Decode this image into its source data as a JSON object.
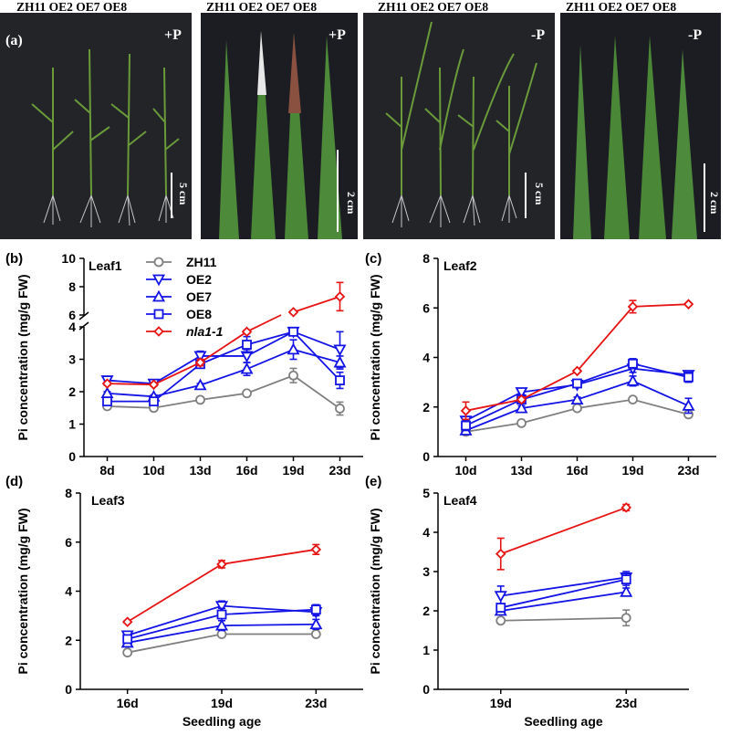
{
  "panel_a": {
    "label": "(a)",
    "photos": [
      {
        "header": "ZH11 OE2  OE7  OE8",
        "condition": "+P",
        "scale": "5 cm",
        "type": "seedling"
      },
      {
        "header": "ZH11 OE2 OE7 OE8",
        "condition": "+P",
        "scale": "2 cm",
        "type": "leaf"
      },
      {
        "header": "ZH11 OE2  OE7  OE8",
        "condition": "-P",
        "scale": "5 cm",
        "type": "seedling"
      },
      {
        "header": "ZH11 OE2 OE7 OE8",
        "condition": "-P",
        "scale": "2 cm",
        "type": "leaf"
      }
    ]
  },
  "legend": [
    {
      "name": "ZH11",
      "color": "#808080",
      "marker": "circle"
    },
    {
      "name": "OE2",
      "color": "#1414e6",
      "marker": "triangle-down"
    },
    {
      "name": "OE7",
      "color": "#1414e6",
      "marker": "triangle-up"
    },
    {
      "name": "OE8",
      "color": "#1414e6",
      "marker": "square"
    },
    {
      "name": "nla1-1",
      "color": "#e61414",
      "marker": "diamond"
    }
  ],
  "chart_data": [
    {
      "panel": "(b)",
      "title": "Leaf1",
      "type": "line",
      "ylabel": "Pi concentration (mg/g FW)",
      "xlabel": "",
      "categories": [
        "8d",
        "10d",
        "13d",
        "16d",
        "19d",
        "23d"
      ],
      "y_axis": {
        "broken": true,
        "lower_range": [
          0,
          4
        ],
        "upper_range": [
          6,
          10
        ],
        "lower_ticks": [
          "0",
          "1",
          "2",
          "3",
          "4"
        ],
        "upper_ticks": [
          "6",
          "8",
          "10"
        ]
      },
      "series": [
        {
          "name": "ZH11",
          "values": [
            1.55,
            1.5,
            1.75,
            1.95,
            2.5,
            1.48
          ],
          "errors": [
            0.08,
            0.08,
            0.08,
            0.08,
            0.22,
            0.2
          ]
        },
        {
          "name": "OE2",
          "values": [
            2.35,
            2.25,
            3.1,
            3.1,
            3.85,
            3.3
          ],
          "errors": [
            0.05,
            0.05,
            0.15,
            0.2,
            0.3,
            0.55
          ]
        },
        {
          "name": "OE7",
          "values": [
            1.95,
            1.85,
            2.2,
            2.7,
            3.3,
            2.9
          ],
          "errors": [
            0.05,
            0.05,
            0.05,
            0.2,
            0.3,
            0.2
          ]
        },
        {
          "name": "OE8",
          "values": [
            1.7,
            1.7,
            2.85,
            3.45,
            3.85,
            2.35
          ],
          "errors": [
            0.05,
            0.05,
            0.1,
            0.25,
            0.2,
            0.25
          ]
        },
        {
          "name": "nla1-1",
          "values": [
            2.25,
            2.22,
            2.9,
            3.85,
            6.2,
            7.3
          ],
          "errors": [
            0.05,
            0.05,
            0.1,
            0.05,
            0.1,
            1.0
          ],
          "note": "line from 16d to 19d crosses the axis break"
        }
      ]
    },
    {
      "panel": "(c)",
      "title": "Leaf2",
      "type": "line",
      "ylabel": "Pi concentration (mg/g FW)",
      "xlabel": "",
      "categories": [
        "10d",
        "13d",
        "16d",
        "19d",
        "23d"
      ],
      "ylim": [
        0,
        8
      ],
      "ticks": [
        "0",
        "2",
        "4",
        "6",
        "8"
      ],
      "series": [
        {
          "name": "ZH11",
          "values": [
            1.0,
            1.35,
            1.95,
            2.3,
            1.7
          ],
          "errors": [
            0.08,
            0.08,
            0.08,
            0.1,
            0.1
          ]
        },
        {
          "name": "OE2",
          "values": [
            1.45,
            2.6,
            2.9,
            3.55,
            3.3
          ],
          "errors": [
            0.1,
            0.1,
            0.1,
            0.15,
            0.15
          ]
        },
        {
          "name": "OE7",
          "values": [
            1.05,
            1.95,
            2.3,
            3.05,
            2.05
          ],
          "errors": [
            0.1,
            0.1,
            0.1,
            0.2,
            0.3
          ]
        },
        {
          "name": "OE8",
          "values": [
            1.25,
            2.3,
            2.95,
            3.75,
            3.2
          ],
          "errors": [
            0.2,
            0.1,
            0.15,
            0.2,
            0.2
          ]
        },
        {
          "name": "nla1-1",
          "values": [
            1.85,
            2.3,
            3.45,
            6.05,
            6.15
          ],
          "errors": [
            0.35,
            0.1,
            0.05,
            0.25,
            0.05
          ]
        }
      ]
    },
    {
      "panel": "(d)",
      "title": "Leaf3",
      "type": "line",
      "ylabel": "Pi concentration (mg/g FW)",
      "xlabel": "Seedling age",
      "categories": [
        "16d",
        "19d",
        "23d"
      ],
      "ylim": [
        0,
        8
      ],
      "ticks": [
        "0",
        "2",
        "4",
        "6",
        "8"
      ],
      "series": [
        {
          "name": "ZH11",
          "values": [
            1.5,
            2.25,
            2.25
          ],
          "errors": [
            0.05,
            0.1,
            0.1
          ]
        },
        {
          "name": "OE2",
          "values": [
            2.2,
            3.4,
            3.15
          ],
          "errors": [
            0.1,
            0.2,
            0.15
          ]
        },
        {
          "name": "OE7",
          "values": [
            1.9,
            2.6,
            2.65
          ],
          "errors": [
            0.1,
            0.2,
            0.2
          ]
        },
        {
          "name": "OE8",
          "values": [
            2.05,
            3.05,
            3.25
          ],
          "errors": [
            0.1,
            0.25,
            0.2
          ]
        },
        {
          "name": "nla1-1",
          "values": [
            2.75,
            5.1,
            5.7
          ],
          "errors": [
            0.05,
            0.15,
            0.2
          ]
        }
      ]
    },
    {
      "panel": "(e)",
      "title": "Leaf4",
      "type": "line",
      "ylabel": "Pi concentration (mg/g FW)",
      "xlabel": "Seedling age",
      "categories": [
        "19d",
        "23d"
      ],
      "ylim": [
        0,
        5
      ],
      "ticks": [
        "0",
        "1",
        "2",
        "3",
        "4",
        "5"
      ],
      "series": [
        {
          "name": "ZH11",
          "values": [
            1.75,
            1.82
          ],
          "errors": [
            0.05,
            0.2
          ]
        },
        {
          "name": "OE2",
          "values": [
            2.38,
            2.85
          ],
          "errors": [
            0.25,
            0.15
          ]
        },
        {
          "name": "OE7",
          "values": [
            2.0,
            2.48
          ],
          "errors": [
            0.05,
            0.1
          ]
        },
        {
          "name": "OE8",
          "values": [
            2.08,
            2.8
          ],
          "errors": [
            0.1,
            0.15
          ]
        },
        {
          "name": "nla1-1",
          "values": [
            3.45,
            4.63
          ],
          "errors": [
            0.4,
            0.08
          ]
        }
      ]
    }
  ]
}
